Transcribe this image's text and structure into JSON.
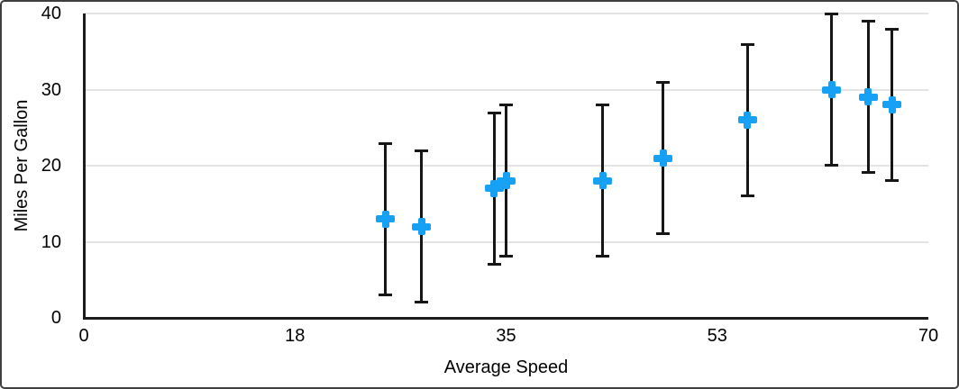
{
  "chart_data": {
    "type": "scatter",
    "title": "",
    "xlabel": "Average Speed",
    "ylabel": "Miles Per Gallon",
    "xlim": [
      0,
      70
    ],
    "ylim": [
      0,
      40
    ],
    "x_ticks": {
      "values": [
        0,
        17.5,
        35,
        52.5,
        70
      ],
      "labels": [
        "0",
        "18",
        "35",
        "53",
        "70"
      ]
    },
    "y_ticks": {
      "values": [
        0,
        10,
        20,
        30,
        40
      ],
      "labels": [
        "0",
        "10",
        "20",
        "30",
        "40"
      ]
    },
    "grid": "horizontal-gridlines-only",
    "legend": "none",
    "series": [
      {
        "name": "Miles Per Gallon",
        "marker": "plus",
        "marker_color": "#17a1f4",
        "error_bars": {
          "type": "fixed-value",
          "plus": 10,
          "minus": 10,
          "color": "#161616"
        },
        "points": [
          {
            "x": 25,
            "y": 13
          },
          {
            "x": 28,
            "y": 12
          },
          {
            "x": 34,
            "y": 17
          },
          {
            "x": 35,
            "y": 18
          },
          {
            "x": 43,
            "y": 18
          },
          {
            "x": 48,
            "y": 21
          },
          {
            "x": 55,
            "y": 26
          },
          {
            "x": 62,
            "y": 30
          },
          {
            "x": 65,
            "y": 29
          },
          {
            "x": 67,
            "y": 28
          }
        ]
      }
    ]
  },
  "colors": {
    "background": "#ffffff",
    "frame_border": "#3e3e3e",
    "axis": "#1c1c1c",
    "gridline": "#e3e3e3",
    "text": "#000000",
    "marker": "#17a1f4",
    "error_bar": "#161616"
  }
}
